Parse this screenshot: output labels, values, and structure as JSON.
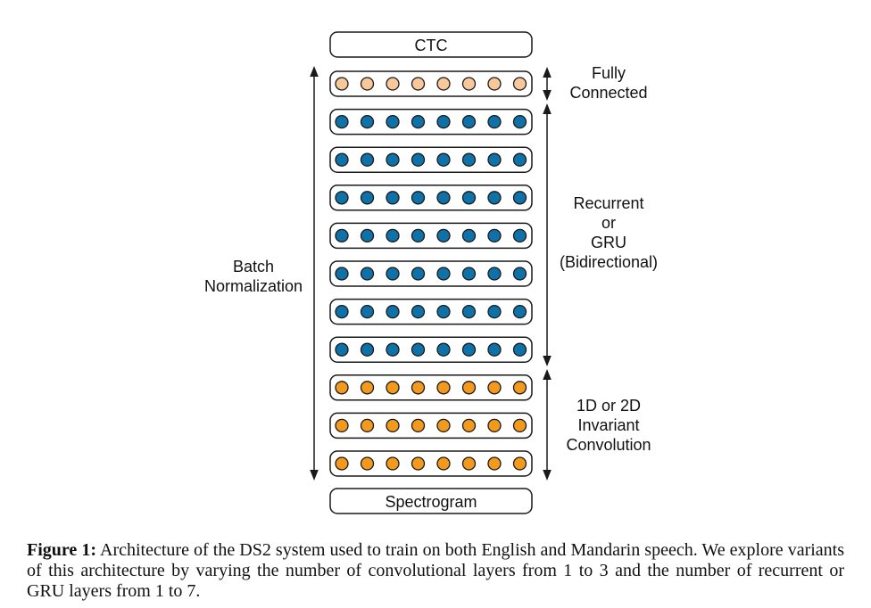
{
  "diagram": {
    "top_box": "CTC",
    "bottom_box": "Spectrogram",
    "layers": [
      {
        "group": "fc",
        "nodes": 8
      },
      {
        "group": "rnn",
        "nodes": 8
      },
      {
        "group": "rnn",
        "nodes": 8
      },
      {
        "group": "rnn",
        "nodes": 8
      },
      {
        "group": "rnn",
        "nodes": 8
      },
      {
        "group": "rnn",
        "nodes": 8
      },
      {
        "group": "rnn",
        "nodes": 8
      },
      {
        "group": "rnn",
        "nodes": 8
      },
      {
        "group": "conv",
        "nodes": 8
      },
      {
        "group": "conv",
        "nodes": 8
      },
      {
        "group": "conv",
        "nodes": 8
      }
    ],
    "colors": {
      "fc": "#f8c89a",
      "rnn": "#0e72a8",
      "conv": "#f39a1c",
      "stroke": "#1a1a1a"
    },
    "labels": {
      "batch_norm": [
        "Batch",
        "Normalization"
      ],
      "fc": [
        "Fully",
        "Connected"
      ],
      "rnn": [
        "Recurrent",
        "or",
        "GRU",
        "(Bidirectional)"
      ],
      "conv": [
        "1D or 2D",
        "Invariant",
        "Convolution"
      ]
    }
  },
  "caption": {
    "label": "Figure 1:",
    "text": "Architecture of the DS2 system used to train on both English and Mandarin speech. We explore variants of this architecture by varying the number of convolutional layers from 1 to 3 and the number of recurrent or GRU layers from 1 to 7."
  }
}
